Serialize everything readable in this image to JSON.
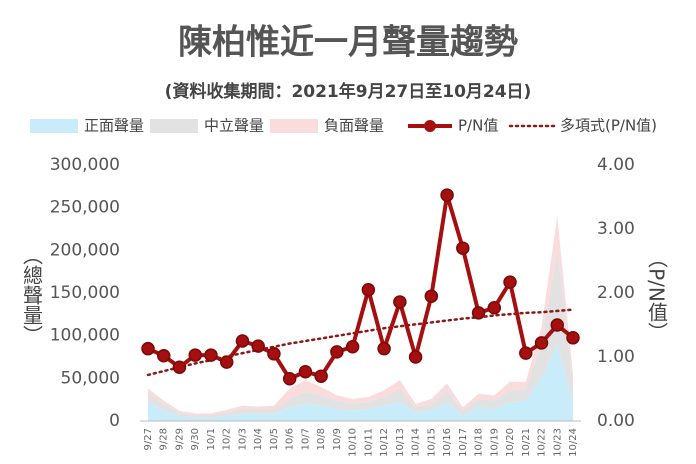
{
  "chart_data": {
    "type": "combo",
    "title": "陳柏惟近一月聲量趨勢",
    "subtitle": "(資料收集期間：2021年9月27日至10月24日)",
    "y_label": "（總聲量）",
    "y2_label": "（P/N值）",
    "categories": [
      "9/27",
      "9/28",
      "9/29",
      "9/30",
      "10/1",
      "10/2",
      "10/3",
      "10/4",
      "10/5",
      "10/6",
      "10/7",
      "10/8",
      "10/9",
      "10/10",
      "10/11",
      "10/12",
      "10/13",
      "10/14",
      "10/15",
      "10/16",
      "10/17",
      "10/18",
      "10/19",
      "10/20",
      "10/21",
      "10/22",
      "10/23",
      "10/24"
    ],
    "ylim": [
      0,
      300000
    ],
    "yticks": [
      0,
      {
        "value": 50000,
        "label": "50,000"
      },
      {
        "value": 100000,
        "label": "100,000"
      },
      {
        "value": 150000,
        "label": "150,000"
      },
      {
        "value": 200000,
        "label": "200,000"
      },
      {
        "value": 250000,
        "label": "250,000"
      },
      {
        "value": 300000,
        "label": "300,000"
      }
    ],
    "y2lim": [
      0,
      4
    ],
    "y2ticks": [
      {
        "value": 0,
        "label": "0.00"
      },
      {
        "value": 1,
        "label": "1.00"
      },
      {
        "value": 2,
        "label": "2.00"
      },
      {
        "value": 3,
        "label": "3.00"
      },
      {
        "value": 4,
        "label": "4.00"
      }
    ],
    "series": [
      {
        "name": "正面聲量",
        "type": "area",
        "color": "#c9ecfa",
        "values": [
          22000,
          12000,
          6000,
          4000,
          4000,
          6000,
          8000,
          9000,
          8000,
          16000,
          20000,
          18000,
          14000,
          12000,
          14000,
          18000,
          22000,
          10000,
          12000,
          22000,
          6000,
          16000,
          14000,
          22000,
          24000,
          50000,
          90000,
          20000
        ]
      },
      {
        "name": "中立聲量",
        "type": "area",
        "color": "#e2e2e2",
        "values": [
          10000,
          8000,
          4000,
          3000,
          3000,
          4000,
          6000,
          5000,
          6000,
          10000,
          14000,
          12000,
          10000,
          8000,
          8000,
          10000,
          16000,
          6000,
          8000,
          14000,
          6000,
          10000,
          10000,
          14000,
          14000,
          40000,
          110000,
          25000
        ]
      },
      {
        "name": "負面聲量",
        "type": "area",
        "color": "#fbdcdc",
        "values": [
          6000,
          4000,
          2000,
          2000,
          2000,
          3000,
          4000,
          3000,
          4000,
          12000,
          14000,
          10000,
          6000,
          6000,
          6000,
          8000,
          10000,
          4000,
          6000,
          8000,
          4000,
          6000,
          6000,
          10000,
          8000,
          20000,
          40000,
          10000
        ]
      },
      {
        "name": "P/N值",
        "type": "line",
        "axis": "y2",
        "color": "#a50f0f",
        "values": [
          1.13,
          1.02,
          0.84,
          1.03,
          1.03,
          0.92,
          1.25,
          1.17,
          1.05,
          0.66,
          0.77,
          0.7,
          1.08,
          1.16,
          2.05,
          1.13,
          1.86,
          1.0,
          1.95,
          3.53,
          2.7,
          1.69,
          1.77,
          2.17,
          1.06,
          1.22,
          1.5,
          1.3
        ]
      },
      {
        "name": "多項式(P/N值)",
        "type": "trend",
        "axis": "y2",
        "color": "#8b1a1a",
        "values": [
          0.72,
          0.78,
          0.84,
          0.9,
          0.95,
          1.01,
          1.06,
          1.11,
          1.16,
          1.21,
          1.25,
          1.29,
          1.33,
          1.37,
          1.41,
          1.45,
          1.48,
          1.51,
          1.54,
          1.57,
          1.6,
          1.62,
          1.65,
          1.67,
          1.69,
          1.7,
          1.72,
          1.74
        ]
      }
    ]
  }
}
